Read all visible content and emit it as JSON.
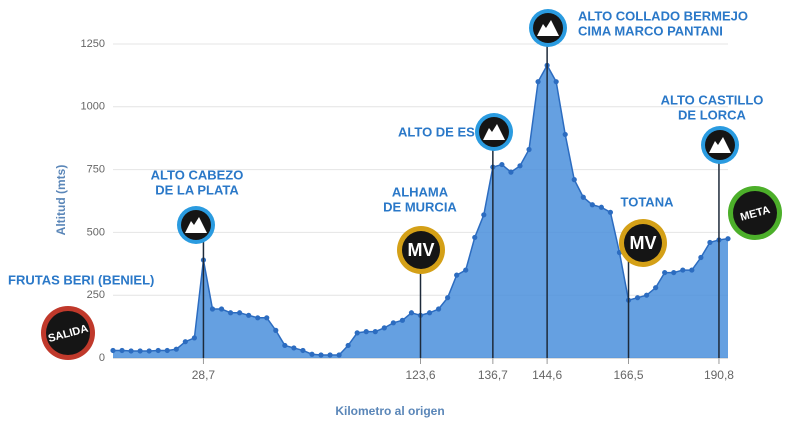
{
  "chart_data": {
    "type": "area",
    "y_label": "Altitud (mts)",
    "x_label": "Kilometro al origen",
    "categories": [
      null,
      null,
      null,
      null,
      null,
      null,
      null,
      null,
      null,
      null,
      "28,7",
      null,
      null,
      null,
      null,
      null,
      null,
      null,
      null,
      null,
      null,
      null,
      null,
      null,
      null,
      null,
      null,
      null,
      null,
      null,
      null,
      null,
      null,
      null,
      "123,6",
      null,
      null,
      null,
      null,
      null,
      null,
      null,
      "136,7",
      null,
      null,
      null,
      null,
      null,
      "144,6",
      null,
      null,
      null,
      null,
      null,
      null,
      null,
      null,
      "166,5",
      null,
      null,
      null,
      null,
      null,
      null,
      null,
      null,
      null,
      "190,8",
      null
    ],
    "series": [
      {
        "color": "#4a8fdc",
        "values": [
          30,
          30,
          28,
          28,
          28,
          30,
          30,
          35,
          65,
          80,
          390,
          195,
          195,
          180,
          180,
          170,
          160,
          160,
          110,
          50,
          40,
          30,
          15,
          12,
          12,
          12,
          50,
          100,
          105,
          105,
          120,
          140,
          150,
          180,
          170,
          180,
          195,
          240,
          330,
          350,
          480,
          570,
          760,
          770,
          740,
          765,
          830,
          1100,
          1165,
          1100,
          890,
          710,
          640,
          610,
          600,
          580,
          420,
          230,
          240,
          250,
          280,
          340,
          340,
          350,
          350,
          400,
          460,
          470,
          475
        ]
      }
    ],
    "ylim": [
      0,
      1250
    ],
    "yticks": [
      0,
      250,
      500,
      750,
      1000,
      1250
    ],
    "grid": true,
    "annotations": [
      {
        "lines": [
          "FRUTAS BERI (BENIEL)"
        ],
        "badge": "SALIDA"
      },
      {
        "lines": [
          "ALTO CABEZO",
          "DE LA PLATA"
        ]
      },
      {
        "lines": [
          "ALHAMA",
          "DE MURCIA"
        ],
        "badge": "MV"
      },
      {
        "lines": [
          "ALTO DE ESPUÑA"
        ]
      },
      {
        "lines": [
          "ALTO COLLADO BERMEJO",
          "CIMA MARCO PANTANI"
        ]
      },
      {
        "lines": [
          "TOTANA"
        ],
        "badge": "MV"
      },
      {
        "lines": [
          "ALTO CASTILLO",
          "DE LORCA"
        ]
      },
      {
        "badge": "META"
      }
    ]
  }
}
